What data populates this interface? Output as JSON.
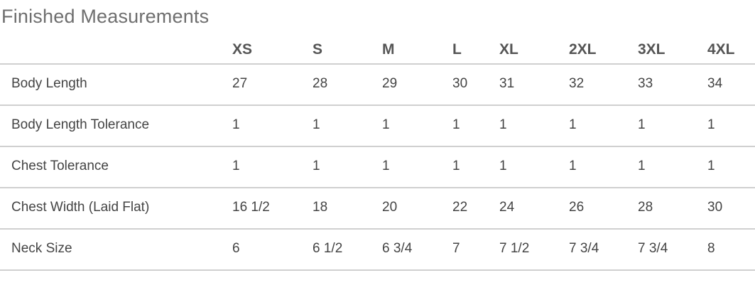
{
  "title": "Finished Measurements",
  "sizes": [
    "XS",
    "S",
    "M",
    "L",
    "XL",
    "2XL",
    "3XL",
    "4XL"
  ],
  "rows": [
    {
      "label": "Body Length",
      "values": [
        "27",
        "28",
        "29",
        "30",
        "31",
        "32",
        "33",
        "34"
      ]
    },
    {
      "label": "Body Length Tolerance",
      "values": [
        "1",
        "1",
        "1",
        "1",
        "1",
        "1",
        "1",
        "1"
      ]
    },
    {
      "label": "Chest Tolerance",
      "values": [
        "1",
        "1",
        "1",
        "1",
        "1",
        "1",
        "1",
        "1"
      ]
    },
    {
      "label": "Chest Width (Laid Flat)",
      "values": [
        "16 1/2",
        "18",
        "20",
        "22",
        "24",
        "26",
        "28",
        "30"
      ]
    },
    {
      "label": "Neck Size",
      "values": [
        "6",
        "6 1/2",
        "6 3/4",
        "7",
        "7 1/2",
        "7 3/4",
        "7 3/4",
        "8"
      ]
    }
  ]
}
